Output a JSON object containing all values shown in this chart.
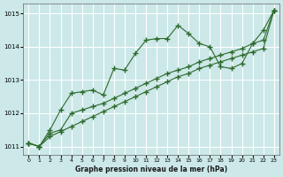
{
  "x": [
    0,
    1,
    2,
    3,
    4,
    5,
    6,
    7,
    8,
    9,
    10,
    11,
    12,
    13,
    14,
    15,
    16,
    17,
    18,
    19,
    20,
    21,
    22,
    23
  ],
  "line1": [
    1011.1,
    1011.0,
    1011.5,
    1012.1,
    1012.6,
    1012.65,
    1012.7,
    1012.55,
    1013.35,
    1013.3,
    1013.8,
    1014.2,
    1014.25,
    1014.25,
    1014.65,
    1014.4,
    1014.1,
    1014.0,
    1013.4,
    1013.35,
    1013.5,
    1014.1,
    1014.5,
    1015.1
  ],
  "line2": [
    1011.1,
    1011.0,
    1011.4,
    1011.5,
    1012.0,
    1012.1,
    1012.2,
    1012.3,
    1012.45,
    1012.6,
    1012.75,
    1012.9,
    1013.05,
    1013.2,
    1013.3,
    1013.4,
    1013.55,
    1013.65,
    1013.75,
    1013.85,
    1013.95,
    1014.1,
    1014.2,
    1015.1
  ],
  "line3": [
    1011.1,
    1011.0,
    1011.3,
    1011.45,
    1011.6,
    1011.75,
    1011.9,
    1012.05,
    1012.2,
    1012.35,
    1012.5,
    1012.65,
    1012.8,
    1012.95,
    1013.1,
    1013.2,
    1013.35,
    1013.45,
    1013.55,
    1013.65,
    1013.75,
    1013.85,
    1013.95,
    1015.1
  ],
  "ylim": [
    1010.75,
    1015.3
  ],
  "xlim": [
    -0.5,
    23.5
  ],
  "yticks": [
    1011,
    1012,
    1013,
    1014,
    1015
  ],
  "xticks": [
    0,
    1,
    2,
    3,
    4,
    5,
    6,
    7,
    8,
    9,
    10,
    11,
    12,
    13,
    14,
    15,
    16,
    17,
    18,
    19,
    20,
    21,
    22,
    23
  ],
  "xlabel": "Graphe pression niveau de la mer (hPa)",
  "line_color": "#2d6a2d",
  "bg_color": "#cce8e8",
  "grid_color": "#ffffff"
}
